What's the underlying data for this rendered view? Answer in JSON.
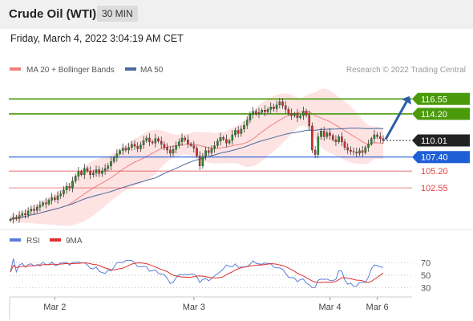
{
  "header": {
    "title": "Crude Oil (WTI)",
    "timeframe": "30 MIN"
  },
  "date_line": "Friday, March 4, 2022 3:04:19 AM CET",
  "legend": {
    "ma20_label": "MA 20 + Bollinger Bands",
    "ma50_label": "MA 50",
    "copyright": "Research © 2022 Trading Central"
  },
  "rsi_legend": {
    "rsi_label": "RSI",
    "ma_label": "9MA"
  },
  "colors": {
    "resistance": "#4a9a0a",
    "support": "#1f5fd6",
    "level_red": "#e04040",
    "price_badge": "#222222",
    "ma20": "#f08080",
    "ma50": "#4a6aa0",
    "bollinger_fill": "#fdd7d7",
    "candle_up": "#2a8a2a",
    "candle_down": "#d03030",
    "rsi": "#5a7fd6",
    "rsi_ma": "#e03030",
    "arrow": "#2a5fa8"
  },
  "chart_data": [
    {
      "type": "candlestick",
      "title": "Crude Oil (WTI)",
      "x_ticks": [
        "Mar 2",
        "Mar 3",
        "Mar 4",
        "Mar 6"
      ],
      "ylim": [
        97,
        120
      ],
      "levels": [
        {
          "value": 116.55,
          "label": "116.55",
          "kind": "resistance"
        },
        {
          "value": 114.2,
          "label": "114.20",
          "kind": "resistance"
        },
        {
          "value": 110.01,
          "label": "110.01",
          "kind": "current"
        },
        {
          "value": 107.4,
          "label": "107.40",
          "kind": "support"
        },
        {
          "value": 105.2,
          "label": "105.20",
          "kind": "red"
        },
        {
          "value": 102.55,
          "label": "102.55",
          "kind": "red"
        }
      ],
      "close": [
        97.6,
        97.9,
        97.7,
        98.2,
        98.5,
        98.3,
        98.9,
        99.2,
        99.0,
        99.5,
        99.8,
        100.2,
        100.0,
        100.6,
        101.0,
        100.7,
        101.3,
        101.6,
        102.2,
        102.8,
        102.5,
        103.6,
        104.4,
        105.1,
        104.6,
        105.6,
        105.2,
        104.6,
        104.9,
        105.4,
        104.8,
        105.2,
        105.6,
        106.0,
        106.7,
        107.3,
        107.9,
        108.4,
        108.8,
        108.5,
        108.9,
        109.4,
        109.1,
        108.7,
        109.3,
        110.0,
        110.4,
        109.8,
        109.6,
        110.3,
        109.9,
        109.4,
        108.9,
        108.5,
        108.0,
        108.6,
        109.2,
        109.8,
        110.4,
        110.1,
        109.5,
        109.2,
        108.8,
        107.6,
        106.0,
        107.5,
        108.4,
        108.1,
        108.7,
        109.2,
        109.9,
        110.5,
        110.2,
        109.6,
        110.0,
        110.9,
        111.6,
        111.1,
        111.8,
        112.4,
        113.2,
        114.1,
        114.6,
        114.2,
        114.4,
        114.8,
        114.5,
        114.9,
        115.3,
        115.0,
        115.6,
        116.1,
        115.5,
        114.9,
        114.3,
        113.9,
        114.2,
        113.6,
        113.9,
        114.6,
        114.0,
        112.3,
        108.5,
        107.8,
        110.6,
        111.5,
        110.6,
        111.2,
        110.8,
        110.1,
        109.8,
        110.6,
        109.8,
        108.9,
        108.5,
        108.3,
        108.2,
        108.0,
        108.4,
        108.1,
        108.9,
        109.4,
        110.3,
        110.9,
        110.6,
        110.3,
        110.01
      ]
    },
    {
      "type": "line",
      "title": "RSI",
      "series": [
        {
          "name": "RSI"
        },
        {
          "name": "9MA"
        }
      ],
      "y_ticks": [
        70,
        50,
        30
      ],
      "ylim": [
        20,
        80
      ]
    }
  ]
}
